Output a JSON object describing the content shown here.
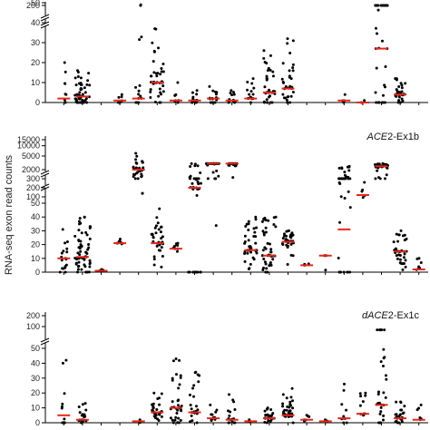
{
  "figure": {
    "ylabel": "RNA-seq exon read counts"
  },
  "chart_data": [
    {
      "type": "scatter",
      "title_italic": "",
      "title_rest": "",
      "upper_ticks": [
        {
          "v": 200,
          "t": "200"
        }
      ],
      "lower_ticks": [
        {
          "v": 0,
          "t": "0"
        },
        {
          "v": 10,
          "t": "10"
        },
        {
          "v": 20,
          "t": "20"
        },
        {
          "v": 30,
          "t": "30"
        },
        {
          "v": 40,
          "t": "40"
        },
        {
          "v": 50,
          "t": "50"
        }
      ],
      "ylim_lower": [
        0,
        50
      ],
      "groups": [
        {
          "n": 8,
          "median": 2,
          "max": 20
        },
        {
          "n": 50,
          "median": 3,
          "max": 16
        },
        {
          "n": 0,
          "median": 0,
          "max": 0
        },
        {
          "n": 6,
          "median": 1,
          "max": 4
        },
        {
          "n": 14,
          "median": 2,
          "max": 49
        },
        {
          "n": 45,
          "median": 10,
          "max": 37
        },
        {
          "n": 8,
          "median": 1,
          "max": 10
        },
        {
          "n": 14,
          "median": 1,
          "max": 6
        },
        {
          "n": 18,
          "median": 2,
          "max": 8
        },
        {
          "n": 14,
          "median": 1,
          "max": 6
        },
        {
          "n": 16,
          "median": 2,
          "max": 12
        },
        {
          "n": 35,
          "median": 5,
          "max": 26
        },
        {
          "n": 35,
          "median": 7,
          "max": 32
        },
        {
          "n": 0,
          "median": 0,
          "max": 0
        },
        {
          "n": 0,
          "median": 0,
          "max": 0
        },
        {
          "n": 5,
          "median": 1,
          "max": 4
        },
        {
          "n": 2,
          "median": 0,
          "max": 1
        },
        {
          "n": 40,
          "median": 27,
          "max": 215
        },
        {
          "n": 30,
          "median": 4,
          "max": 12
        },
        {
          "n": 0,
          "median": 0,
          "max": 0
        }
      ]
    },
    {
      "type": "scatter",
      "title_italic": "ACE",
      "title_rest": "2-Ex1b",
      "upper_ticks": [
        {
          "v": 2000,
          "t": "2000"
        },
        {
          "v": 5000,
          "t": "5000"
        },
        {
          "v": 10000,
          "t": "10000"
        },
        {
          "v": 15000,
          "t": "15000"
        }
      ],
      "mid_ticks": [
        {
          "v": 300,
          "t": "300"
        },
        {
          "v": 200,
          "t": "200"
        },
        {
          "v": 100,
          "t": "100"
        }
      ],
      "lower_ticks": [
        {
          "v": 0,
          "t": "0"
        },
        {
          "v": 10,
          "t": "10"
        },
        {
          "v": 20,
          "t": "20"
        },
        {
          "v": 30,
          "t": "30"
        },
        {
          "v": 40,
          "t": "40"
        },
        {
          "v": 50,
          "t": "50"
        }
      ],
      "ylim_lower": [
        0,
        50
      ],
      "groups": [
        {
          "n": 18,
          "median": 10,
          "max": 31
        },
        {
          "n": 60,
          "median": 11,
          "max": 40
        },
        {
          "n": 4,
          "median": 1,
          "max": 2
        },
        {
          "n": 8,
          "median": 21,
          "max": 24
        },
        {
          "n": 30,
          "median": 2000,
          "max": 6000
        },
        {
          "n": 35,
          "median": 21,
          "max": 46
        },
        {
          "n": 9,
          "median": 17,
          "max": 21
        },
        {
          "n": 40,
          "median": 200,
          "max": 3000
        },
        {
          "n": 45,
          "median": 3000,
          "max": 3000
        },
        {
          "n": 30,
          "median": 3000,
          "max": 3000
        },
        {
          "n": 40,
          "median": 16,
          "max": 40
        },
        {
          "n": 45,
          "median": 12,
          "max": 40
        },
        {
          "n": 35,
          "median": 22,
          "max": 30
        },
        {
          "n": 4,
          "median": 5,
          "max": 6
        },
        {
          "n": 3,
          "median": 12,
          "max": 12
        },
        {
          "n": 40,
          "median": 31,
          "max": 2500
        },
        {
          "n": 5,
          "median": 120,
          "max": 260
        },
        {
          "n": 40,
          "median": 2500,
          "max": 3000
        },
        {
          "n": 40,
          "median": 15,
          "max": 30
        },
        {
          "n": 8,
          "median": 2,
          "max": 10
        }
      ]
    },
    {
      "type": "scatter",
      "title_italic": "dACE",
      "title_rest": "2-Ex1c",
      "upper_ticks": [
        {
          "v": 100,
          "t": "100"
        },
        {
          "v": 200,
          "t": "200"
        }
      ],
      "lower_ticks": [
        {
          "v": 0,
          "t": "0"
        },
        {
          "v": 10,
          "t": "10"
        },
        {
          "v": 20,
          "t": "20"
        },
        {
          "v": 30,
          "t": "30"
        },
        {
          "v": 40,
          "t": "40"
        },
        {
          "v": 50,
          "t": "50"
        }
      ],
      "ylim_lower": [
        0,
        50
      ],
      "groups": [
        {
          "n": 10,
          "median": 5,
          "max": 42
        },
        {
          "n": 20,
          "median": 2,
          "max": 13
        },
        {
          "n": 0,
          "median": 0,
          "max": 0
        },
        {
          "n": 0,
          "median": 0,
          "max": 0
        },
        {
          "n": 2,
          "median": 1,
          "max": 2
        },
        {
          "n": 30,
          "median": 7,
          "max": 20
        },
        {
          "n": 35,
          "median": 10,
          "max": 43
        },
        {
          "n": 25,
          "median": 7,
          "max": 34
        },
        {
          "n": 15,
          "median": 3,
          "max": 12
        },
        {
          "n": 18,
          "median": 2,
          "max": 19
        },
        {
          "n": 3,
          "median": 1,
          "max": 2
        },
        {
          "n": 25,
          "median": 3,
          "max": 10
        },
        {
          "n": 35,
          "median": 5,
          "max": 23
        },
        {
          "n": 6,
          "median": 2,
          "max": 5
        },
        {
          "n": 2,
          "median": 1,
          "max": 2
        },
        {
          "n": 10,
          "median": 3,
          "max": 26
        },
        {
          "n": 10,
          "median": 6,
          "max": 20
        },
        {
          "n": 30,
          "median": 12,
          "max": 70
        },
        {
          "n": 25,
          "median": 3,
          "max": 14
        },
        {
          "n": 6,
          "median": 2,
          "max": 12
        }
      ]
    }
  ]
}
